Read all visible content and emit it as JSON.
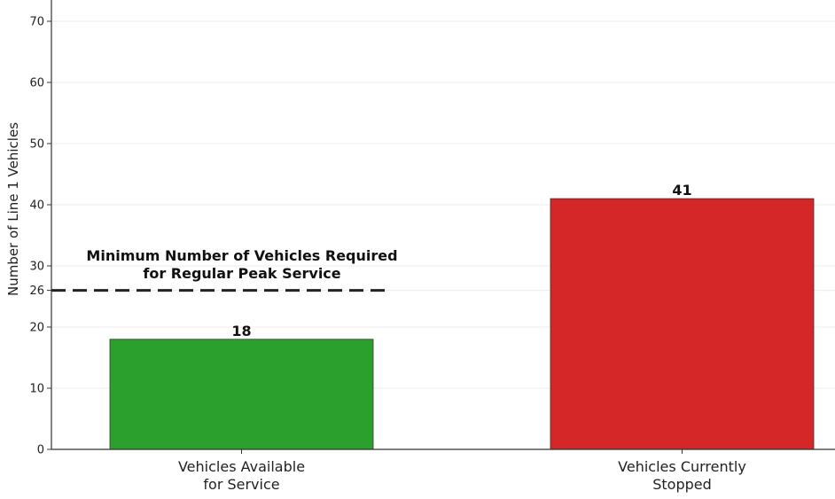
{
  "chart_data": {
    "type": "bar",
    "title": "",
    "xlabel": "",
    "ylabel": "Number of Line 1 Vehicles",
    "categories": [
      "Vehicles Available\nfor Service",
      "Vehicles Currently\nStopped"
    ],
    "category_lines": [
      [
        "Vehicles Available",
        "for Service"
      ],
      [
        "Vehicles Currently",
        "Stopped"
      ]
    ],
    "values": [
      18,
      41
    ],
    "value_labels": [
      "18",
      "41"
    ],
    "colors": [
      "#2ca02c",
      "#d62728"
    ],
    "ylim": [
      0,
      74
    ],
    "yticks": [
      0,
      10,
      20,
      26,
      30,
      40,
      50,
      60,
      70
    ],
    "grid": true,
    "reference_line": {
      "value": 26,
      "style": "dashed",
      "color": "#222222",
      "label_lines": [
        "Minimum Number of Vehicles Required",
        "for Regular Peak Service"
      ]
    },
    "legend": null
  }
}
